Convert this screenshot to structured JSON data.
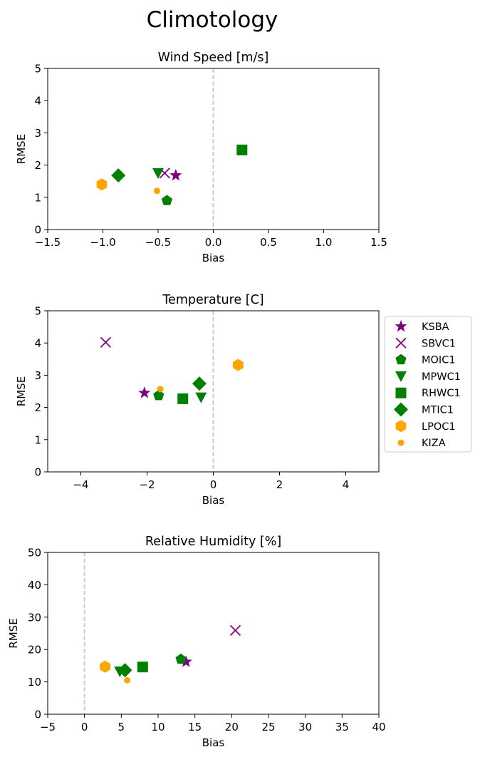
{
  "figure": {
    "title": "Climotology"
  },
  "legend": {
    "placement": "right of Temperature panel",
    "entries": [
      {
        "label": "KSBA",
        "marker": "star",
        "color": "#800080"
      },
      {
        "label": "SBVC1",
        "marker": "x",
        "color": "#800080"
      },
      {
        "label": "MOIC1",
        "marker": "pentagon",
        "color": "#008000"
      },
      {
        "label": "MPWC1",
        "marker": "triangle-down",
        "color": "#008000"
      },
      {
        "label": "RHWC1",
        "marker": "square",
        "color": "#008000"
      },
      {
        "label": "MTIC1",
        "marker": "diamond",
        "color": "#008000"
      },
      {
        "label": "LPOC1",
        "marker": "hexagon",
        "color": "#FFA500"
      },
      {
        "label": "KIZA",
        "marker": "dot",
        "color": "#FFA500"
      }
    ]
  },
  "chart_data": [
    {
      "type": "scatter",
      "title": "Wind Speed [m/s]",
      "xlabel": "Bias",
      "ylabel": "RMSE",
      "xlim": [
        -1.5,
        1.5
      ],
      "ylim": [
        0,
        5
      ],
      "xticks": [
        "−1.5",
        "−1.0",
        "−0.5",
        "0.0",
        "0.5",
        "1.0",
        "1.5"
      ],
      "yticks": [
        "0",
        "1",
        "2",
        "3",
        "4",
        "5"
      ],
      "reference_line": {
        "x": 0,
        "style": "dashed",
        "color": "#cccccc"
      },
      "series": [
        {
          "name": "KSBA",
          "x": -0.34,
          "y": 1.68
        },
        {
          "name": "SBVC1",
          "x": -0.44,
          "y": 1.75
        },
        {
          "name": "MOIC1",
          "x": -0.42,
          "y": 0.9
        },
        {
          "name": "MPWC1",
          "x": -0.5,
          "y": 1.75
        },
        {
          "name": "RHWC1",
          "x": 0.26,
          "y": 2.47
        },
        {
          "name": "MTIC1",
          "x": -0.86,
          "y": 1.68
        },
        {
          "name": "LPOC1",
          "x": -1.01,
          "y": 1.4
        },
        {
          "name": "KIZA",
          "x": -0.51,
          "y": 1.2
        }
      ]
    },
    {
      "type": "scatter",
      "title": "Temperature [C]",
      "xlabel": "Bias",
      "ylabel": "RMSE",
      "xlim": [
        -5,
        5
      ],
      "ylim": [
        0,
        5
      ],
      "xticks": [
        "−4",
        "−2",
        "0",
        "2",
        "4"
      ],
      "yticks": [
        "0",
        "1",
        "2",
        "3",
        "4",
        "5"
      ],
      "reference_line": {
        "x": 0,
        "style": "dashed",
        "color": "#cccccc"
      },
      "series": [
        {
          "name": "KSBA",
          "x": -2.08,
          "y": 2.45
        },
        {
          "name": "SBVC1",
          "x": -3.25,
          "y": 4.02
        },
        {
          "name": "MOIC1",
          "x": -1.65,
          "y": 2.37
        },
        {
          "name": "MPWC1",
          "x": -0.37,
          "y": 2.31
        },
        {
          "name": "RHWC1",
          "x": -0.92,
          "y": 2.27
        },
        {
          "name": "MTIC1",
          "x": -0.42,
          "y": 2.74
        },
        {
          "name": "LPOC1",
          "x": 0.75,
          "y": 3.32
        },
        {
          "name": "KIZA",
          "x": -1.6,
          "y": 2.57
        }
      ]
    },
    {
      "type": "scatter",
      "title": "Relative Humidity [%]",
      "xlabel": "Bias",
      "ylabel": "RMSE",
      "xlim": [
        -5,
        40
      ],
      "ylim": [
        0,
        50
      ],
      "xticks": [
        "−5",
        "0",
        "5",
        "10",
        "15",
        "20",
        "25",
        "30",
        "35",
        "40"
      ],
      "yticks": [
        "0",
        "10",
        "20",
        "30",
        "40",
        "50"
      ],
      "reference_line": {
        "x": 0,
        "style": "dashed",
        "color": "#cccccc"
      },
      "series": [
        {
          "name": "KSBA",
          "x": 13.8,
          "y": 16.2
        },
        {
          "name": "SBVC1",
          "x": 20.5,
          "y": 25.9
        },
        {
          "name": "MOIC1",
          "x": 13.1,
          "y": 17.0
        },
        {
          "name": "MPWC1",
          "x": 4.8,
          "y": 13.2
        },
        {
          "name": "RHWC1",
          "x": 7.9,
          "y": 14.6
        },
        {
          "name": "MTIC1",
          "x": 5.5,
          "y": 13.6
        },
        {
          "name": "LPOC1",
          "x": 2.8,
          "y": 14.7
        },
        {
          "name": "KIZA",
          "x": 5.8,
          "y": 10.5
        }
      ]
    }
  ]
}
